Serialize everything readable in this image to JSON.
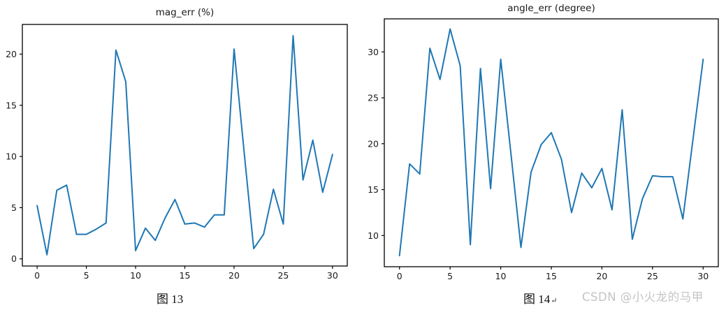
{
  "page": {
    "background": "#ffffff"
  },
  "figures": [
    {
      "caption": "图 13"
    },
    {
      "caption": "图 14",
      "caption_return_mark": "↵",
      "watermark": "CSDN @小火龙的马甲"
    }
  ],
  "colors": {
    "line": "#1f77b4",
    "axis": "#000000",
    "text": "#1a1a1a",
    "watermark": "#c4c4c4"
  },
  "chart_data": [
    {
      "type": "line",
      "title": "mag_err (%)",
      "xlabel": "",
      "ylabel": "",
      "x": [
        0,
        1,
        2,
        3,
        4,
        5,
        6,
        7,
        8,
        9,
        10,
        11,
        12,
        13,
        14,
        15,
        16,
        17,
        18,
        19,
        20,
        21,
        22,
        23,
        24,
        25,
        26,
        27,
        28,
        29,
        30
      ],
      "values": [
        5.2,
        0.4,
        6.7,
        7.2,
        2.4,
        2.4,
        2.9,
        3.5,
        20.4,
        17.3,
        0.8,
        3.0,
        1.8,
        4.0,
        5.8,
        3.4,
        3.5,
        3.1,
        4.3,
        4.3,
        20.5,
        10.7,
        1.0,
        2.4,
        6.8,
        3.4,
        21.8,
        7.7,
        11.6,
        6.5,
        10.2
      ],
      "xlim": [
        -1.5,
        31.5
      ],
      "ylim": [
        -0.7,
        22.9
      ],
      "xticks": [
        0,
        5,
        10,
        15,
        20,
        25,
        30
      ],
      "yticks": [
        0,
        5,
        10,
        15,
        20
      ],
      "grid": false,
      "legend": "none",
      "line_color": "#1f77b4"
    },
    {
      "type": "line",
      "title": "angle_err (degree)",
      "xlabel": "",
      "ylabel": "",
      "x": [
        0,
        1,
        2,
        3,
        4,
        5,
        6,
        7,
        8,
        9,
        10,
        11,
        12,
        13,
        14,
        15,
        16,
        17,
        18,
        19,
        20,
        21,
        22,
        23,
        24,
        25,
        26,
        27,
        28,
        29,
        30
      ],
      "values": [
        7.8,
        17.8,
        16.7,
        30.4,
        27.0,
        32.5,
        28.5,
        9.0,
        28.2,
        15.1,
        29.2,
        19.0,
        8.7,
        16.9,
        19.9,
        21.2,
        18.3,
        12.5,
        16.8,
        15.2,
        17.3,
        12.8,
        23.7,
        9.6,
        14.0,
        16.5,
        16.4,
        16.4,
        11.8,
        20.5,
        29.2
      ],
      "xlim": [
        -1.5,
        31.5
      ],
      "ylim": [
        6.6,
        33.6
      ],
      "xticks": [
        0,
        5,
        10,
        15,
        20,
        25,
        30
      ],
      "yticks": [
        10,
        15,
        20,
        25,
        30
      ],
      "grid": false,
      "legend": "none",
      "line_color": "#1f77b4"
    }
  ]
}
